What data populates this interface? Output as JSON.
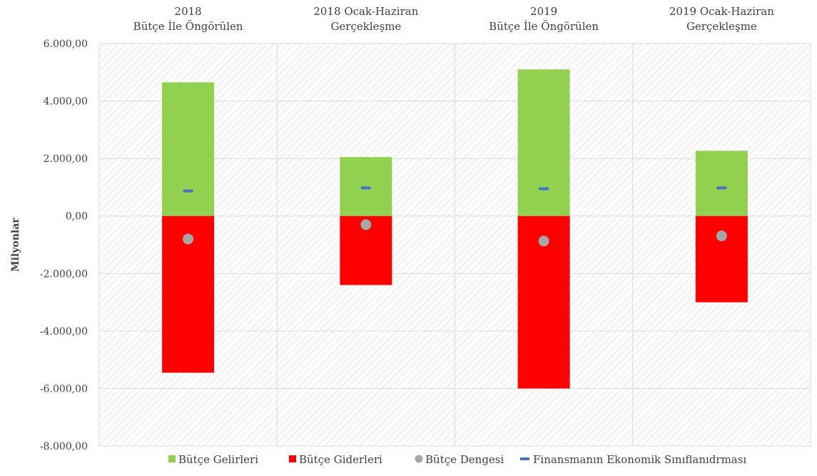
{
  "chart_data": {
    "type": "bar",
    "ylabel": "Milyonlar",
    "ylim": [
      -8000,
      6000
    ],
    "yticks": [
      6000,
      4000,
      2000,
      0,
      -2000,
      -4000,
      -6000,
      -8000
    ],
    "ytick_labels": [
      "6.000,00",
      "4.000,00",
      "2.000,00",
      "0,00",
      "-2.000,00",
      "-4.000,00",
      "-6.000,00",
      "-8.000,00"
    ],
    "grid": true,
    "legend_position": "bottom",
    "categories": [
      [
        "2018",
        "Bütçe  İle Öngörülen"
      ],
      [
        "2018 Ocak-Haziran",
        "Gerçekleşme"
      ],
      [
        "2019",
        "Bütçe İle Öngörülen"
      ],
      [
        "2019 Ocak-Haziran",
        "Gerçekleşme"
      ]
    ],
    "series": [
      {
        "name": "Bütçe Gelirleri",
        "kind": "bar",
        "color": "#92d050",
        "values": [
          4650,
          2050,
          5100,
          2270
        ]
      },
      {
        "name": "Bütçe Giderleri",
        "kind": "bar",
        "color": "#ff0000",
        "values": [
          -5450,
          -2400,
          -6000,
          -3000
        ]
      },
      {
        "name": "Bütçe Dengesi",
        "kind": "marker-circle",
        "color": "#a6a6a6",
        "values": [
          -800,
          -300,
          -870,
          -690
        ]
      },
      {
        "name": "Finansmanın Ekonomik Sınıflanıdrması",
        "kind": "marker-dash",
        "color": "#4472c4",
        "values": [
          870,
          980,
          950,
          980
        ]
      }
    ]
  }
}
